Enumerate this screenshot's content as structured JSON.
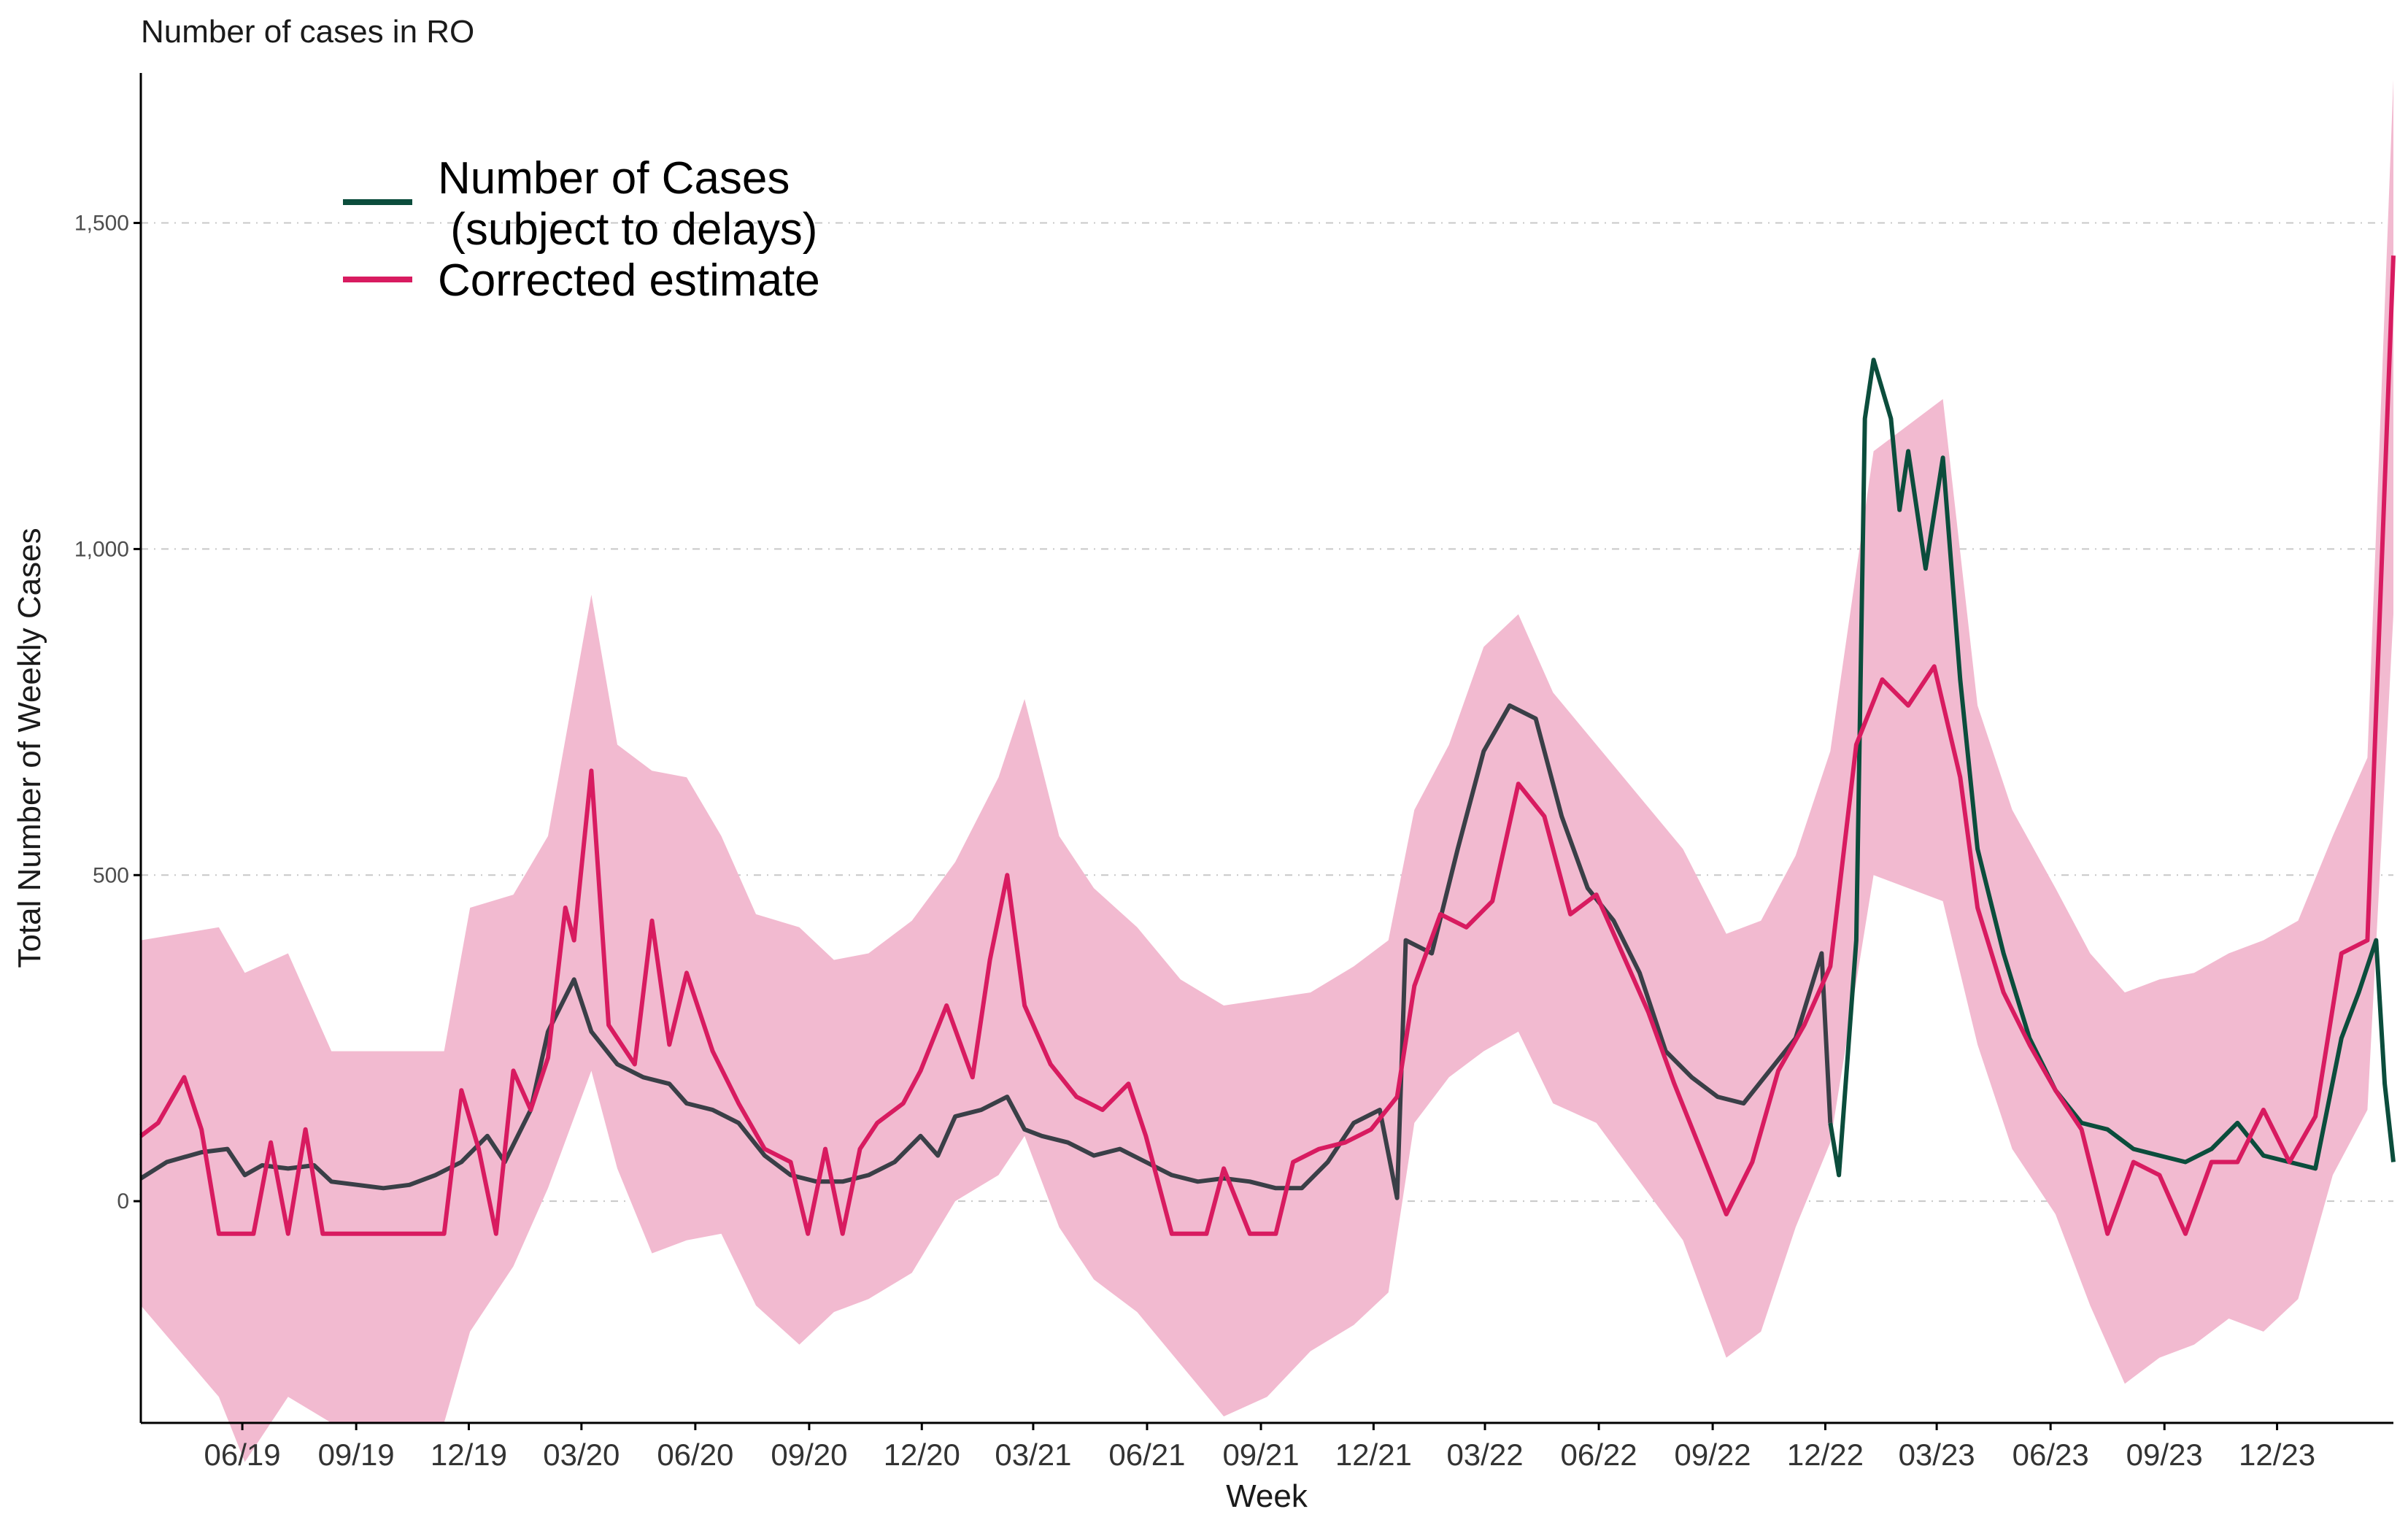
{
  "chart_data": {
    "type": "line",
    "title": "Number of cases in RO",
    "xlabel": "Week",
    "ylabel": "Total Number of Weekly Cases",
    "xlim": [
      "2019-03-25",
      "2024-03-18"
    ],
    "ylim": [
      -340,
      1730
    ],
    "yticks": [
      0,
      500,
      1000,
      1500
    ],
    "ytick_labels": [
      "0",
      "500",
      "1,000",
      "1,500"
    ],
    "xticks": [
      {
        "date": "2019-06-15",
        "label": "06/19"
      },
      {
        "date": "2019-09-15",
        "label": "09/19"
      },
      {
        "date": "2019-12-15",
        "label": "12/19"
      },
      {
        "date": "2020-03-15",
        "label": "03/20"
      },
      {
        "date": "2020-06-15",
        "label": "06/20"
      },
      {
        "date": "2020-09-15",
        "label": "09/20"
      },
      {
        "date": "2020-12-15",
        "label": "12/20"
      },
      {
        "date": "2021-03-15",
        "label": "03/21"
      },
      {
        "date": "2021-06-15",
        "label": "06/21"
      },
      {
        "date": "2021-09-15",
        "label": "09/21"
      },
      {
        "date": "2021-12-15",
        "label": "12/21"
      },
      {
        "date": "2022-03-15",
        "label": "03/22"
      },
      {
        "date": "2022-06-15",
        "label": "06/22"
      },
      {
        "date": "2022-09-15",
        "label": "09/22"
      },
      {
        "date": "2022-12-15",
        "label": "12/22"
      },
      {
        "date": "2023-03-15",
        "label": "03/23"
      },
      {
        "date": "2023-06-15",
        "label": "06/23"
      },
      {
        "date": "2023-09-15",
        "label": "09/23"
      },
      {
        "date": "2023-12-15",
        "label": "12/23"
      }
    ],
    "grid": "horizontal-dashed",
    "legend_position": "top-left",
    "legend": [
      {
        "label": "Number of Cases",
        "label_line2": " (subject to delays)",
        "color": "#0b4d3c"
      },
      {
        "label": "Corrected estimate",
        "color": "#d81b60"
      }
    ],
    "colors": {
      "observed": "#3a3f47",
      "observed_recent": "#0b4d3c",
      "corrected": "#d81b60",
      "interval": "#f2bad0"
    },
    "recent_from": "2022-12-19",
    "series": [
      {
        "name": "Number of Cases (subject to delays)",
        "points": [
          [
            "2019-03-25",
            35
          ],
          [
            "2019-04-15",
            60
          ],
          [
            "2019-05-13",
            75
          ],
          [
            "2019-06-03",
            80
          ],
          [
            "2019-06-17",
            40
          ],
          [
            "2019-07-01",
            55
          ],
          [
            "2019-07-22",
            50
          ],
          [
            "2019-08-12",
            55
          ],
          [
            "2019-08-26",
            30
          ],
          [
            "2019-09-16",
            25
          ],
          [
            "2019-10-07",
            20
          ],
          [
            "2019-10-28",
            25
          ],
          [
            "2019-11-18",
            40
          ],
          [
            "2019-12-09",
            60
          ],
          [
            "2019-12-30",
            100
          ],
          [
            "2020-01-13",
            60
          ],
          [
            "2020-02-03",
            140
          ],
          [
            "2020-02-17",
            260
          ],
          [
            "2020-03-09",
            340
          ],
          [
            "2020-03-23",
            260
          ],
          [
            "2020-04-13",
            210
          ],
          [
            "2020-05-04",
            190
          ],
          [
            "2020-05-25",
            180
          ],
          [
            "2020-06-08",
            150
          ],
          [
            "2020-06-29",
            140
          ],
          [
            "2020-07-20",
            120
          ],
          [
            "2020-08-10",
            70
          ],
          [
            "2020-08-31",
            40
          ],
          [
            "2020-09-21",
            30
          ],
          [
            "2020-10-12",
            30
          ],
          [
            "2020-11-02",
            40
          ],
          [
            "2020-11-23",
            60
          ],
          [
            "2020-12-14",
            100
          ],
          [
            "2020-12-28",
            70
          ],
          [
            "2021-01-11",
            130
          ],
          [
            "2021-02-01",
            140
          ],
          [
            "2021-02-22",
            160
          ],
          [
            "2021-03-08",
            110
          ],
          [
            "2021-03-22",
            100
          ],
          [
            "2021-04-12",
            90
          ],
          [
            "2021-05-03",
            70
          ],
          [
            "2021-05-24",
            80
          ],
          [
            "2021-06-14",
            60
          ],
          [
            "2021-07-05",
            40
          ],
          [
            "2021-07-26",
            30
          ],
          [
            "2021-08-16",
            35
          ],
          [
            "2021-09-06",
            30
          ],
          [
            "2021-09-27",
            20
          ],
          [
            "2021-10-18",
            20
          ],
          [
            "2021-11-08",
            60
          ],
          [
            "2021-11-29",
            120
          ],
          [
            "2021-12-20",
            140
          ],
          [
            "2022-01-03",
            5
          ],
          [
            "2022-01-10",
            400
          ],
          [
            "2022-01-31",
            380
          ],
          [
            "2022-02-21",
            540
          ],
          [
            "2022-03-14",
            690
          ],
          [
            "2022-04-04",
            760
          ],
          [
            "2022-04-25",
            740
          ],
          [
            "2022-05-16",
            590
          ],
          [
            "2022-06-06",
            480
          ],
          [
            "2022-06-27",
            430
          ],
          [
            "2022-07-18",
            350
          ],
          [
            "2022-08-08",
            230
          ],
          [
            "2022-08-29",
            190
          ],
          [
            "2022-09-19",
            160
          ],
          [
            "2022-10-10",
            150
          ],
          [
            "2022-10-31",
            200
          ],
          [
            "2022-11-21",
            250
          ],
          [
            "2022-12-12",
            380
          ],
          [
            "2022-12-19",
            120
          ],
          [
            "2022-12-26",
            40
          ],
          [
            "2023-01-09",
            400
          ],
          [
            "2023-01-16",
            1200
          ],
          [
            "2023-01-23",
            1290
          ],
          [
            "2023-02-06",
            1200
          ],
          [
            "2023-02-13",
            1060
          ],
          [
            "2023-02-20",
            1150
          ],
          [
            "2023-03-06",
            970
          ],
          [
            "2023-03-20",
            1140
          ],
          [
            "2023-04-03",
            800
          ],
          [
            "2023-04-17",
            540
          ],
          [
            "2023-05-08",
            380
          ],
          [
            "2023-05-29",
            250
          ],
          [
            "2023-06-19",
            170
          ],
          [
            "2023-07-10",
            120
          ],
          [
            "2023-07-31",
            110
          ],
          [
            "2023-08-21",
            80
          ],
          [
            "2023-09-11",
            70
          ],
          [
            "2023-10-02",
            60
          ],
          [
            "2023-10-23",
            80
          ],
          [
            "2023-11-13",
            120
          ],
          [
            "2023-12-04",
            70
          ],
          [
            "2023-12-25",
            60
          ],
          [
            "2024-01-15",
            50
          ],
          [
            "2024-02-05",
            250
          ],
          [
            "2024-02-19",
            320
          ],
          [
            "2024-03-04",
            400
          ],
          [
            "2024-03-11",
            180
          ],
          [
            "2024-03-18",
            60
          ]
        ]
      },
      {
        "name": "Corrected estimate",
        "points": [
          [
            "2019-03-25",
            100
          ],
          [
            "2019-04-08",
            120
          ],
          [
            "2019-04-29",
            190
          ],
          [
            "2019-05-13",
            110
          ],
          [
            "2019-05-27",
            -50
          ],
          [
            "2019-06-10",
            -50
          ],
          [
            "2019-06-24",
            -50
          ],
          [
            "2019-07-08",
            90
          ],
          [
            "2019-07-22",
            -50
          ],
          [
            "2019-08-05",
            110
          ],
          [
            "2019-08-19",
            -50
          ],
          [
            "2019-09-09",
            -50
          ],
          [
            "2019-10-28",
            -50
          ],
          [
            "2019-11-25",
            -50
          ],
          [
            "2019-12-09",
            170
          ],
          [
            "2019-12-23",
            80
          ],
          [
            "2020-01-06",
            -50
          ],
          [
            "2020-01-20",
            200
          ],
          [
            "2020-02-03",
            140
          ],
          [
            "2020-02-17",
            220
          ],
          [
            "2020-03-02",
            450
          ],
          [
            "2020-03-09",
            400
          ],
          [
            "2020-03-23",
            660
          ],
          [
            "2020-04-06",
            270
          ],
          [
            "2020-04-27",
            210
          ],
          [
            "2020-05-11",
            430
          ],
          [
            "2020-05-25",
            240
          ],
          [
            "2020-06-08",
            350
          ],
          [
            "2020-06-29",
            230
          ],
          [
            "2020-07-20",
            150
          ],
          [
            "2020-08-10",
            80
          ],
          [
            "2020-08-31",
            60
          ],
          [
            "2020-09-14",
            -50
          ],
          [
            "2020-09-28",
            80
          ],
          [
            "2020-10-12",
            -50
          ],
          [
            "2020-10-26",
            80
          ],
          [
            "2020-11-09",
            120
          ],
          [
            "2020-11-30",
            150
          ],
          [
            "2020-12-14",
            200
          ],
          [
            "2021-01-04",
            300
          ],
          [
            "2021-01-25",
            190
          ],
          [
            "2021-02-08",
            370
          ],
          [
            "2021-02-22",
            500
          ],
          [
            "2021-03-08",
            300
          ],
          [
            "2021-03-29",
            210
          ],
          [
            "2021-04-19",
            160
          ],
          [
            "2021-05-10",
            140
          ],
          [
            "2021-05-31",
            180
          ],
          [
            "2021-06-14",
            100
          ],
          [
            "2021-07-05",
            -50
          ],
          [
            "2021-07-19",
            -50
          ],
          [
            "2021-08-02",
            -50
          ],
          [
            "2021-08-16",
            50
          ],
          [
            "2021-09-06",
            -50
          ],
          [
            "2021-09-27",
            -50
          ],
          [
            "2021-10-11",
            60
          ],
          [
            "2021-11-01",
            80
          ],
          [
            "2021-11-22",
            90
          ],
          [
            "2021-12-13",
            110
          ],
          [
            "2022-01-03",
            160
          ],
          [
            "2022-01-17",
            330
          ],
          [
            "2022-02-07",
            440
          ],
          [
            "2022-02-28",
            420
          ],
          [
            "2022-03-21",
            460
          ],
          [
            "2022-04-11",
            640
          ],
          [
            "2022-05-02",
            590
          ],
          [
            "2022-05-23",
            440
          ],
          [
            "2022-06-13",
            470
          ],
          [
            "2022-07-04",
            380
          ],
          [
            "2022-07-25",
            290
          ],
          [
            "2022-08-15",
            180
          ],
          [
            "2022-09-05",
            80
          ],
          [
            "2022-09-26",
            -20
          ],
          [
            "2022-10-17",
            60
          ],
          [
            "2022-11-07",
            200
          ],
          [
            "2022-11-28",
            270
          ],
          [
            "2022-12-19",
            360
          ],
          [
            "2023-01-09",
            700
          ],
          [
            "2023-01-30",
            800
          ],
          [
            "2023-02-20",
            760
          ],
          [
            "2023-03-13",
            820
          ],
          [
            "2023-04-03",
            650
          ],
          [
            "2023-04-17",
            450
          ],
          [
            "2023-05-08",
            320
          ],
          [
            "2023-05-29",
            240
          ],
          [
            "2023-06-19",
            170
          ],
          [
            "2023-07-10",
            110
          ],
          [
            "2023-07-31",
            -50
          ],
          [
            "2023-08-21",
            60
          ],
          [
            "2023-09-11",
            40
          ],
          [
            "2023-10-02",
            -50
          ],
          [
            "2023-10-23",
            60
          ],
          [
            "2023-11-13",
            60
          ],
          [
            "2023-12-04",
            140
          ],
          [
            "2023-12-25",
            60
          ],
          [
            "2024-01-15",
            130
          ],
          [
            "2024-02-05",
            380
          ],
          [
            "2024-02-26",
            400
          ],
          [
            "2024-03-11",
            1100
          ],
          [
            "2024-03-18",
            1450
          ]
        ]
      }
    ],
    "interval_band": [
      [
        "2019-03-25",
        -160,
        400
      ],
      [
        "2019-05-27",
        -300,
        420
      ],
      [
        "2019-06-17",
        -400,
        350
      ],
      [
        "2019-07-22",
        -300,
        380
      ],
      [
        "2019-08-26",
        -340,
        230
      ],
      [
        "2019-11-25",
        -340,
        230
      ],
      [
        "2019-12-16",
        -200,
        450
      ],
      [
        "2020-01-20",
        -100,
        470
      ],
      [
        "2020-02-17",
        20,
        560
      ],
      [
        "2020-03-23",
        200,
        930
      ],
      [
        "2020-04-13",
        50,
        700
      ],
      [
        "2020-05-11",
        -80,
        660
      ],
      [
        "2020-06-08",
        -60,
        650
      ],
      [
        "2020-07-06",
        -50,
        560
      ],
      [
        "2020-08-03",
        -160,
        440
      ],
      [
        "2020-09-07",
        -220,
        420
      ],
      [
        "2020-10-05",
        -170,
        370
      ],
      [
        "2020-11-02",
        -150,
        380
      ],
      [
        "2020-12-07",
        -110,
        430
      ],
      [
        "2021-01-11",
        0,
        520
      ],
      [
        "2021-02-15",
        40,
        650
      ],
      [
        "2021-03-08",
        100,
        770
      ],
      [
        "2021-04-05",
        -40,
        560
      ],
      [
        "2021-05-03",
        -120,
        480
      ],
      [
        "2021-06-07",
        -170,
        420
      ],
      [
        "2021-07-12",
        -250,
        340
      ],
      [
        "2021-08-16",
        -330,
        300
      ],
      [
        "2021-09-20",
        -300,
        310
      ],
      [
        "2021-10-25",
        -230,
        320
      ],
      [
        "2021-11-29",
        -190,
        360
      ],
      [
        "2021-12-27",
        -140,
        400
      ],
      [
        "2022-01-17",
        120,
        600
      ],
      [
        "2022-02-14",
        190,
        700
      ],
      [
        "2022-03-14",
        230,
        850
      ],
      [
        "2022-04-11",
        260,
        900
      ],
      [
        "2022-05-09",
        150,
        780
      ],
      [
        "2022-06-13",
        120,
        700
      ],
      [
        "2022-07-18",
        30,
        620
      ],
      [
        "2022-08-22",
        -60,
        540
      ],
      [
        "2022-09-26",
        -240,
        410
      ],
      [
        "2022-10-24",
        -200,
        430
      ],
      [
        "2022-11-21",
        -40,
        530
      ],
      [
        "2022-12-19",
        90,
        690
      ],
      [
        "2023-01-23",
        500,
        1150
      ],
      [
        "2023-02-20",
        480,
        1190
      ],
      [
        "2023-03-20",
        460,
        1230
      ],
      [
        "2023-04-17",
        240,
        760
      ],
      [
        "2023-05-15",
        80,
        600
      ],
      [
        "2023-06-19",
        -20,
        480
      ],
      [
        "2023-07-17",
        -160,
        380
      ],
      [
        "2023-08-14",
        -280,
        320
      ],
      [
        "2023-09-11",
        -240,
        340
      ],
      [
        "2023-10-09",
        -220,
        350
      ],
      [
        "2023-11-06",
        -180,
        380
      ],
      [
        "2023-12-04",
        -200,
        400
      ],
      [
        "2024-01-01",
        -150,
        430
      ],
      [
        "2024-01-29",
        40,
        560
      ],
      [
        "2024-02-26",
        140,
        680
      ],
      [
        "2024-03-18",
        900,
        1720
      ]
    ]
  }
}
